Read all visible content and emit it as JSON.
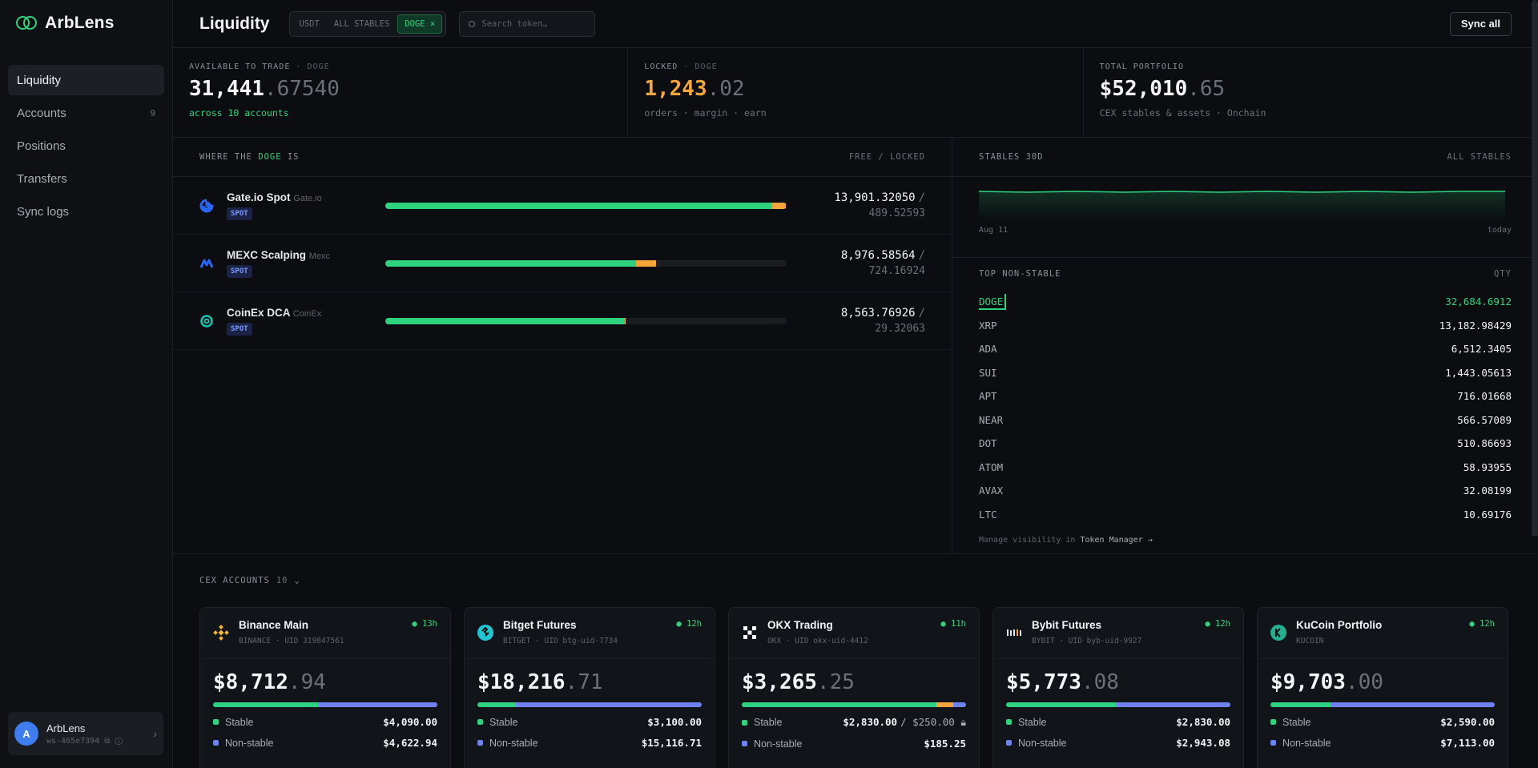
{
  "app": {
    "brand": "ArbLens"
  },
  "sidebar": {
    "items": [
      {
        "label": "Liquidity",
        "count": ""
      },
      {
        "label": "Accounts",
        "count": "9"
      },
      {
        "label": "Positions",
        "count": ""
      },
      {
        "label": "Transfers",
        "count": ""
      },
      {
        "label": "Sync logs",
        "count": ""
      }
    ],
    "user": {
      "initial": "A",
      "name": "ArbLens",
      "workspace": "ws-465e7394"
    }
  },
  "header": {
    "title": "Liquidity",
    "filters": [
      "USDT",
      "ALL STABLES",
      "DOGE ×"
    ],
    "search_placeholder": "Search token…",
    "sync_label": "Sync all"
  },
  "stats": {
    "available": {
      "label": "AVAILABLE TO TRADE",
      "token": "· DOGE",
      "int": "31,441",
      "dec": ".67540",
      "sub": "across 10 accounts"
    },
    "locked": {
      "label": "LOCKED",
      "token": "· DOGE",
      "int": "1,243",
      "dec": ".02",
      "sub": "orders · margin · earn"
    },
    "total": {
      "label": "TOTAL PORTFOLIO",
      "int": "$52,010",
      "dec": ".65",
      "sub": "CEX stables & assets · Onchain"
    }
  },
  "where": {
    "title_pre": "WHERE THE",
    "title_token": "DOGE",
    "title_post": "IS",
    "right": "FREE / LOCKED",
    "rows": [
      {
        "name": "Gate.io Spot",
        "exchange": "Gate.io",
        "badge": "SPOT",
        "free": "13,901.32050",
        "locked": "489.52593",
        "free_frac": 0.965,
        "locked_frac": 0.034,
        "color": "#2a66f6"
      },
      {
        "name": "MEXC Scalping",
        "exchange": "Mexc",
        "badge": "SPOT",
        "free": "8,976.58564",
        "locked": "724.16924",
        "free_frac": 0.625,
        "locked_frac": 0.05,
        "color": "#2a66f6"
      },
      {
        "name": "CoinEx DCA",
        "exchange": "CoinEx",
        "badge": "SPOT",
        "free": "8,563.76926",
        "locked": "29.32063",
        "free_frac": 0.596,
        "locked_frac": 0.002,
        "color": "#18c2b1"
      }
    ]
  },
  "stables_chart": {
    "title": "STABLES 30D",
    "right": "ALL STABLES",
    "x_start": "Aug 11",
    "x_end": "today",
    "color": "#2fd37f"
  },
  "top_non_stable": {
    "title": "TOP NON-STABLE",
    "right": "QTY",
    "tokens": [
      {
        "symbol": "DOGE",
        "qty": "32,684.6912"
      },
      {
        "symbol": "XRP",
        "qty": "13,182.98429"
      },
      {
        "symbol": "ADA",
        "qty": "6,512.3405"
      },
      {
        "symbol": "SUI",
        "qty": "1,443.05613"
      },
      {
        "symbol": "APT",
        "qty": "716.01668"
      },
      {
        "symbol": "NEAR",
        "qty": "566.57089"
      },
      {
        "symbol": "DOT",
        "qty": "510.86693"
      },
      {
        "symbol": "ATOM",
        "qty": "58.93955"
      },
      {
        "symbol": "AVAX",
        "qty": "32.08199"
      },
      {
        "symbol": "LTC",
        "qty": "10.69176"
      }
    ],
    "footer_pre": "Manage visibility in",
    "footer_link": "Token Manager →"
  },
  "cex": {
    "title": "CEX ACCOUNTS",
    "count": "10",
    "cards": [
      {
        "name": "Binance Main",
        "uid": "BINANCE · UID 319847561",
        "age": "● 13h",
        "int": "$8,712",
        "dec": ".94",
        "stable": "$4,090.00",
        "locked": "",
        "nonstable": "$4,622.94",
        "st_frac": 0.47,
        "lk_frac": 0,
        "icon": "binance-icon",
        "icolor": "#f3ba2f"
      },
      {
        "name": "Bitget Futures",
        "uid": "BITGET · UID btg-uid-7734",
        "age": "● 12h",
        "int": "$18,216",
        "dec": ".71",
        "stable": "$3,100.00",
        "locked": "",
        "nonstable": "$15,116.71",
        "st_frac": 0.17,
        "lk_frac": 0,
        "icon": "bitget-icon",
        "icolor": "#1fc7d4"
      },
      {
        "name": "OKX Trading",
        "uid": "OKX · UID okx-uid-4412",
        "age": "● 11h",
        "int": "$3,265",
        "dec": ".25",
        "stable": "$2,830.00",
        "locked": "/ $250.00",
        "nonstable": "$185.25",
        "st_frac": 0.867,
        "lk_frac": 0.077,
        "icon": "okx-icon",
        "icolor": "#ffffff"
      },
      {
        "name": "Bybit Futures",
        "uid": "BYBIT · UID byb-uid-9927",
        "age": "● 12h",
        "int": "$5,773",
        "dec": ".08",
        "stable": "$2,830.00",
        "locked": "",
        "nonstable": "$2,943.08",
        "st_frac": 0.49,
        "lk_frac": 0,
        "icon": "bybit-icon",
        "icolor": "#f7a600"
      },
      {
        "name": "KuCoin Portfolio",
        "uid": "KUCOIN",
        "age": "● 12h",
        "int": "$9,703",
        "dec": ".00",
        "stable": "$2,590.00",
        "locked": "",
        "nonstable": "$7,113.00",
        "st_frac": 0.267,
        "lk_frac": 0,
        "icon": "kucoin-icon",
        "icolor": "#23af91"
      }
    ],
    "stable_label": "Stable",
    "nonstable_label": "Non-stable"
  }
}
